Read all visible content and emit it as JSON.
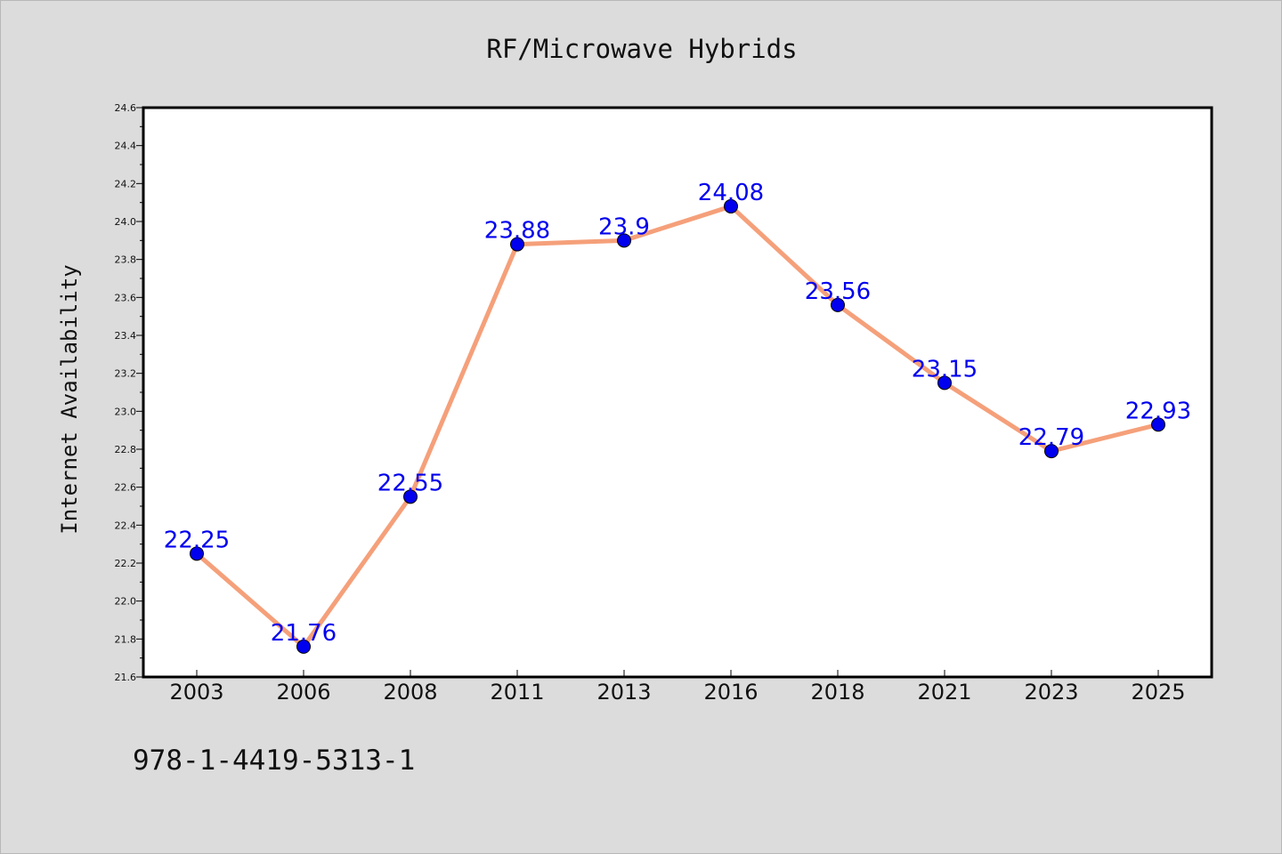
{
  "footer": {
    "code": "978-1-4419-5313-1"
  },
  "colors": {
    "background": "#dcdcdc",
    "plot_background": "#ffffff",
    "line": "#f5a07a",
    "marker": "#0000ee",
    "data_label": "#0000ee",
    "axes": "#000000"
  },
  "chart_data": {
    "type": "line",
    "title": "RF/Microwave Hybrids",
    "xlabel": "",
    "ylabel": "Internet Availability",
    "categories": [
      "2003",
      "2006",
      "2008",
      "2011",
      "2013",
      "2016",
      "2018",
      "2021",
      "2023",
      "2025"
    ],
    "series": [
      {
        "values": [
          22.25,
          21.76,
          22.55,
          23.88,
          23.9,
          24.08,
          23.56,
          23.15,
          22.79,
          22.93
        ],
        "data_labels": [
          "22.25",
          "21.76",
          "22.55",
          "23.88",
          "23.9",
          "24.08",
          "23.56",
          "23.15",
          "22.79",
          "22.93"
        ],
        "marker": "circle"
      }
    ],
    "ylim": [
      21.6,
      24.6
    ],
    "y_ticks": [
      "21.6",
      "21.8",
      "22.0",
      "22.2",
      "22.4",
      "22.6",
      "22.8",
      "23.0",
      "23.2",
      "23.4",
      "23.6",
      "23.8",
      "24.0",
      "24.2",
      "24.4",
      "24.6"
    ],
    "grid": false,
    "legend": "none"
  }
}
